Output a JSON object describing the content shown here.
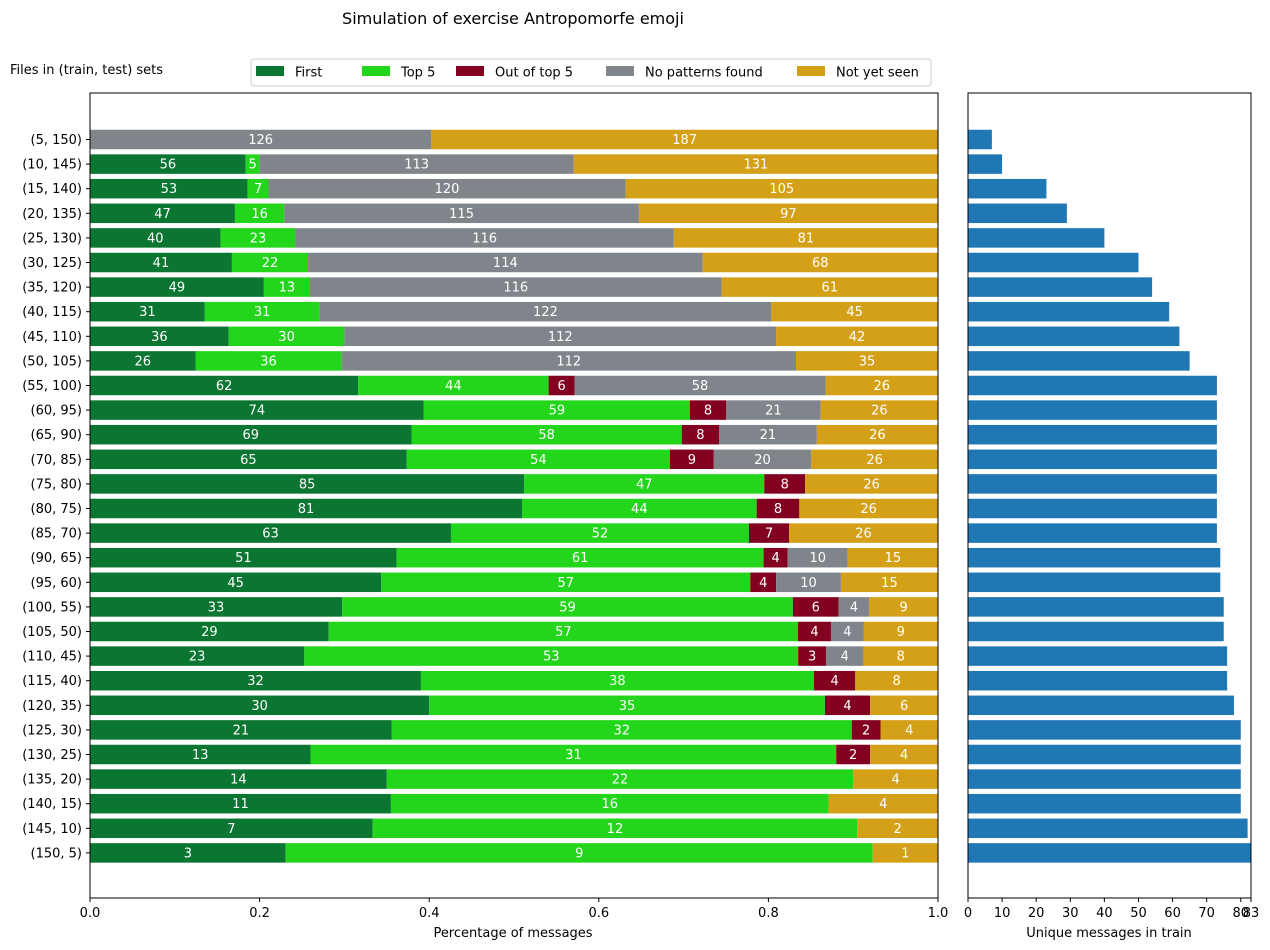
{
  "chart_data": [
    {
      "type": "bar",
      "orientation": "horizontal",
      "stacked": true,
      "normalized": true,
      "title": "Simulation of exercise Antropomorfe emoji",
      "ylabel": "Files in (train, test) sets",
      "xlabel": "Percentage of messages",
      "xlim": [
        0,
        1
      ],
      "xticks": [
        "0.0",
        "0.2",
        "0.4",
        "0.6",
        "0.8",
        "1.0"
      ],
      "legend_position": "top",
      "categories": [
        "(5, 150)",
        "(10, 145)",
        "(15, 140)",
        "(20, 135)",
        "(25, 130)",
        "(30, 125)",
        "(35, 120)",
        "(40, 115)",
        "(45, 110)",
        "(50, 105)",
        "(55, 100)",
        "(60, 95)",
        "(65, 90)",
        "(70, 85)",
        "(75, 80)",
        "(80, 75)",
        "(85, 70)",
        "(90, 65)",
        "(95, 60)",
        "(100, 55)",
        "(105, 50)",
        "(110, 45)",
        "(115, 40)",
        "(120, 35)",
        "(125, 30)",
        "(130, 25)",
        "(135, 20)",
        "(140, 15)",
        "(145, 10)",
        "(150, 5)"
      ],
      "series": [
        {
          "name": "First",
          "color": "#0b7532",
          "values": [
            0,
            56,
            53,
            47,
            40,
            41,
            49,
            31,
            36,
            26,
            62,
            74,
            69,
            65,
            85,
            81,
            63,
            51,
            45,
            33,
            29,
            23,
            32,
            30,
            21,
            13,
            14,
            11,
            7,
            3
          ]
        },
        {
          "name": "Top 5",
          "color": "#23d61b",
          "values": [
            0,
            5,
            7,
            16,
            23,
            22,
            13,
            31,
            30,
            36,
            44,
            59,
            58,
            54,
            47,
            44,
            52,
            61,
            57,
            59,
            57,
            53,
            38,
            35,
            32,
            31,
            22,
            16,
            12,
            9
          ]
        },
        {
          "name": "Out of top 5",
          "color": "#820020",
          "values": [
            0,
            0,
            0,
            0,
            0,
            0,
            0,
            0,
            0,
            0,
            6,
            8,
            8,
            9,
            8,
            8,
            7,
            4,
            4,
            6,
            4,
            3,
            4,
            4,
            2,
            2,
            0,
            0,
            0,
            0
          ]
        },
        {
          "name": "No patterns found",
          "color": "#80858b",
          "values": [
            126,
            113,
            120,
            115,
            116,
            114,
            116,
            122,
            112,
            112,
            58,
            21,
            21,
            20,
            0,
            0,
            0,
            10,
            10,
            4,
            4,
            4,
            0,
            0,
            0,
            0,
            0,
            0,
            0,
            0
          ]
        },
        {
          "name": "Not yet seen",
          "color": "#d4a017",
          "values": [
            187,
            131,
            105,
            97,
            81,
            68,
            61,
            45,
            42,
            35,
            26,
            26,
            26,
            26,
            26,
            26,
            26,
            15,
            15,
            9,
            9,
            8,
            8,
            6,
            4,
            4,
            4,
            4,
            2,
            1
          ]
        }
      ]
    },
    {
      "type": "bar",
      "orientation": "horizontal",
      "xlabel": "Unique messages in train",
      "xlim": [
        0,
        83
      ],
      "xticks": [
        "0",
        "10",
        "20",
        "30",
        "40",
        "50",
        "60",
        "70",
        "80",
        "83"
      ],
      "color": "#1f77b4",
      "values": [
        7,
        10,
        23,
        29,
        40,
        50,
        54,
        59,
        62,
        65,
        73,
        73,
        73,
        73,
        73,
        73,
        73,
        74,
        74,
        75,
        75,
        76,
        76,
        78,
        80,
        80,
        80,
        80,
        82,
        83
      ]
    }
  ]
}
